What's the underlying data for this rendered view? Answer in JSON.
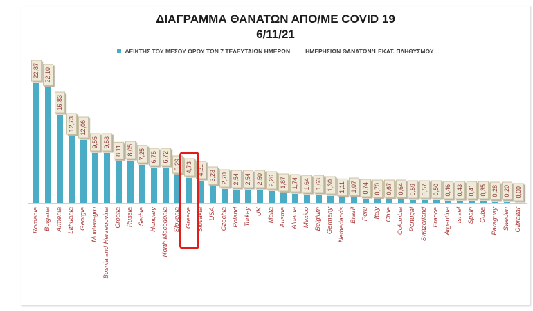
{
  "chart": {
    "title_line1": "ΔΙΑΓΡΑΜΜΑ ΘΑΝΑΤΩΝ ΑΠΟ/ΜΕ COVID 19",
    "title_line2": "6/11/21",
    "legend_part1": "ΔΕΙΚΤΗΣ ΤΟΥ ΜΕΣΟΥ ΟΡΟΥ ΤΩΝ 7 ΤΕΛΕΥΤΑΙΩΝ ΗΜΕΡΩΝ",
    "legend_part2": "ΗΜΕΡΗΣΙΩΝ ΘΑΝΑΤΩΝ/1 ΕΚΑΤ. ΠΛΗΘΥΣΜΟΥ"
  },
  "chart_data": {
    "type": "bar",
    "title": "ΔΙΑΓΡΑΜΜΑ ΘΑΝΑΤΩΝ ΑΠΟ/ΜΕ COVID 19",
    "subtitle": "6/11/21",
    "legend": [
      "ΔΕΙΚΤΗΣ ΤΟΥ ΜΕΣΟΥ ΟΡΟΥ ΤΩΝ 7 ΤΕΛΕΥΤΑΙΩΝ ΗΜΕΡΩΝ   ΗΜΕΡΗΣΙΩΝ ΘΑΝΑΤΩΝ/1 ΕΚΑΤ. ΠΛΗΘΥΣΜΟΥ"
    ],
    "legend_position": "top",
    "grid": false,
    "xlabel": "",
    "ylabel": "",
    "ylim": [
      0,
      24
    ],
    "categories": [
      "Romania",
      "Bulgaria",
      "Armenia",
      "Lithuania",
      "Georgia",
      "Montenegro",
      "Bosnia and Herzegovina",
      "Croatia",
      "Russia",
      "Serbia",
      "Hungary",
      "North Macedonia",
      "Slovenia",
      "Greece",
      "Slovakia",
      "USA",
      "Czechia",
      "Poland",
      "Turkey",
      "UK",
      "Malta",
      "Austria",
      "Albania",
      "Mexico",
      "Belgium",
      "Germany",
      "Netherlands",
      "Brazil",
      "Peru",
      "Italy",
      "Chile",
      "Colombia",
      "Portugal",
      "Switzerland",
      "France",
      "Argentina",
      "Israel",
      "Spain",
      "Cuba",
      "Paraguay",
      "Sweden",
      "Gibraltar"
    ],
    "values": [
      22.87,
      22.1,
      16.83,
      12.73,
      12.06,
      9.55,
      9.53,
      8.11,
      8.05,
      7.25,
      6.75,
      6.72,
      5.29,
      4.73,
      4.21,
      3.23,
      2.7,
      2.54,
      2.54,
      2.5,
      2.26,
      1.87,
      1.74,
      1.64,
      1.63,
      1.3,
      1.11,
      1.07,
      0.74,
      0.7,
      0.67,
      0.64,
      0.59,
      0.57,
      0.5,
      0.46,
      0.43,
      0.41,
      0.35,
      0.28,
      0.2,
      0.0
    ],
    "value_labels": [
      "22,87",
      "22,10",
      "16,83",
      "12,73",
      "12,06",
      "9,55",
      "9,53",
      "8,11",
      "8,05",
      "7,25",
      "6,75",
      "6,72",
      "5,29",
      "4,73",
      "4,21",
      "3,23",
      "2,70",
      "2,54",
      "2,54",
      "2,50",
      "2,26",
      "1,87",
      "1,74",
      "1,64",
      "1,63",
      "1,30",
      "1,11",
      "1,07",
      "0,74",
      "0,70",
      "0,67",
      "0,64",
      "0,59",
      "0,57",
      "0,50",
      "0,46",
      "0,43",
      "0,41",
      "0,35",
      "0,28",
      "0,20",
      "0,00"
    ],
    "highlight_category": "Greece",
    "colors": {
      "bar": "#4BACC6",
      "value_label_text": "#8B3A3A",
      "value_label_bg": "#F0EAD8",
      "category_label_text": "#AD3B3B",
      "axis_line": "#D0CECE",
      "title_text": "#1B1B1B",
      "legend_text": "#404040",
      "highlight_border": "#E21B1B"
    }
  }
}
